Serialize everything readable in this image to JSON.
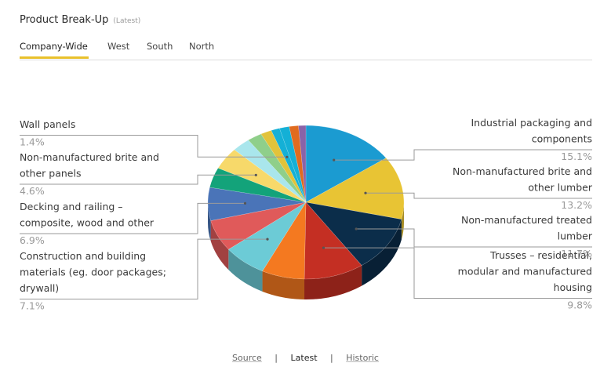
{
  "header": {
    "title": "Product Break-Up",
    "subtitle": "(Latest)"
  },
  "tabs": [
    {
      "label": "Company-Wide",
      "active": true
    },
    {
      "label": "West",
      "active": false
    },
    {
      "label": "South",
      "active": false
    },
    {
      "label": "North",
      "active": false
    }
  ],
  "footer": {
    "links": [
      {
        "label": "Source",
        "active": false
      },
      {
        "label": "Latest",
        "active": true
      },
      {
        "label": "Historic",
        "active": false
      }
    ],
    "separator": "|"
  },
  "colors": {
    "accent": "#e9c12c"
  },
  "chart_data": {
    "type": "pie",
    "title": "Product Break-Up",
    "subtitle": "(Latest)",
    "labeled_slices": [
      {
        "name": "Industrial packaging and components",
        "value": 15.1,
        "label": "15.1%",
        "color": "#1b9bd1",
        "side": "right"
      },
      {
        "name": "Non-manufactured brite and other lumber",
        "value": 13.2,
        "label": "13.2%",
        "color": "#e8c434",
        "side": "right"
      },
      {
        "name": "Non-manufactured treated lumber",
        "value": 11.7,
        "label": "11.7%",
        "color": "#0b2d4a",
        "side": "right"
      },
      {
        "name": "Trusses – residential, modular and manufactured housing",
        "value": 9.8,
        "label": "9.8%",
        "color": "#c42f23",
        "side": "right"
      },
      {
        "name": "Construction and building materials (eg. door packages; drywall)",
        "value": 7.1,
        "label": "7.1%",
        "color": "#6ccbd6",
        "side": "left"
      },
      {
        "name": "Decking and railing – composite, wood and other",
        "value": 6.9,
        "label": "6.9%",
        "color": "#4a74b8",
        "side": "left"
      },
      {
        "name": "Non-manufactured brite and other panels",
        "value": 4.6,
        "label": "4.6%",
        "color": "#f7d96a",
        "side": "left"
      },
      {
        "name": "Wall panels",
        "value": 1.4,
        "label": "1.4%",
        "color": "#14b0d6",
        "side": "left"
      }
    ],
    "unlabeled_slice_colors": [
      "#f47920",
      "#e05a5a",
      "#13a37a",
      "#a9e6ec",
      "#8fcf8a",
      "#e2c33a",
      "#14b0d6",
      "#e06b1f",
      "#8a63a8"
    ],
    "unlabeled_slice_values": [
      7.0,
      6.6,
      4.2,
      3.0,
      2.4,
      1.8,
      1.6,
      1.5,
      1.2
    ],
    "legend": "none"
  }
}
